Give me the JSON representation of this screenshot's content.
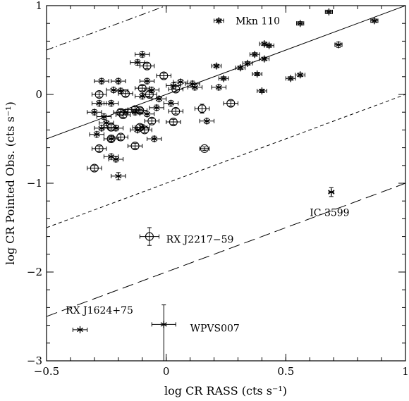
{
  "chart_data": {
    "type": "scatter",
    "title": "",
    "xlabel": "log CR RASS (cts s⁻¹)",
    "ylabel": "log CR Pointed Obs. (cts s⁻¹)",
    "xlim": [
      -0.5,
      1.0
    ],
    "ylim": [
      -3.0,
      1.0
    ],
    "x_ticks": [
      -0.5,
      0,
      0.5,
      1
    ],
    "x_tick_labels": [
      "−0.5",
      "0",
      "0.5",
      "1"
    ],
    "y_ticks": [
      -3,
      -2,
      -1,
      0,
      1
    ],
    "y_tick_labels": [
      "−3",
      "−2",
      "−1",
      "0",
      "1"
    ],
    "grid": false,
    "reference_lines": [
      {
        "style": "solid",
        "slope": 1,
        "intercept": 0.0
      },
      {
        "style": "dash-dot",
        "slope": 1,
        "intercept": 1.0
      },
      {
        "style": "short-dash",
        "slope": 1,
        "intercept": -1.0
      },
      {
        "style": "long-dash",
        "slope": 1,
        "intercept": -2.0
      }
    ],
    "series": [
      {
        "marker": "star",
        "points": [
          {
            "x": 0.22,
            "y": 0.83,
            "xerr": 0.02,
            "yerr": 0.02
          },
          {
            "x": 0.56,
            "y": 0.8,
            "xerr": 0.015,
            "yerr": 0.02
          },
          {
            "x": 0.68,
            "y": 0.93,
            "xerr": 0.015,
            "yerr": 0.02
          },
          {
            "x": 0.87,
            "y": 0.83,
            "xerr": 0.015,
            "yerr": 0.02
          },
          {
            "x": 0.72,
            "y": 0.56,
            "xerr": 0.015,
            "yerr": 0.03
          },
          {
            "x": 0.41,
            "y": 0.57,
            "xerr": 0.02,
            "yerr": 0.02
          },
          {
            "x": 0.43,
            "y": 0.55,
            "xerr": 0.02,
            "yerr": 0.02
          },
          {
            "x": 0.37,
            "y": 0.45,
            "xerr": 0.02,
            "yerr": 0.02
          },
          {
            "x": 0.41,
            "y": 0.4,
            "xerr": 0.02,
            "yerr": 0.02
          },
          {
            "x": 0.34,
            "y": 0.35,
            "xerr": 0.02,
            "yerr": 0.02
          },
          {
            "x": 0.31,
            "y": 0.3,
            "xerr": 0.02,
            "yerr": 0.02
          },
          {
            "x": 0.21,
            "y": 0.32,
            "xerr": 0.02,
            "yerr": 0.02
          },
          {
            "x": 0.38,
            "y": 0.23,
            "xerr": 0.02,
            "yerr": 0.02
          },
          {
            "x": 0.56,
            "y": 0.22,
            "xerr": 0.02,
            "yerr": 0.02
          },
          {
            "x": 0.52,
            "y": 0.18,
            "xerr": 0.02,
            "yerr": 0.02
          },
          {
            "x": 0.24,
            "y": 0.18,
            "xerr": 0.02,
            "yerr": 0.02
          },
          {
            "x": 0.11,
            "y": 0.12,
            "xerr": 0.03,
            "yerr": 0.03
          },
          {
            "x": 0.06,
            "y": 0.14,
            "xerr": 0.03,
            "yerr": 0.03
          },
          {
            "x": 0.22,
            "y": 0.08,
            "xerr": 0.03,
            "yerr": 0.03
          },
          {
            "x": 0.4,
            "y": 0.04,
            "xerr": 0.02,
            "yerr": 0.02
          },
          {
            "x": 0.12,
            "y": 0.08,
            "xerr": 0.03,
            "yerr": 0.03
          },
          {
            "x": -0.1,
            "y": 0.45,
            "xerr": 0.03,
            "yerr": 0.03
          },
          {
            "x": -0.12,
            "y": 0.36,
            "xerr": 0.03,
            "yerr": 0.03
          },
          {
            "x": -0.2,
            "y": 0.15,
            "xerr": 0.03,
            "yerr": 0.03
          },
          {
            "x": -0.27,
            "y": 0.15,
            "xerr": 0.03,
            "yerr": 0.03
          },
          {
            "x": -0.08,
            "y": 0.15,
            "xerr": 0.03,
            "yerr": 0.03
          },
          {
            "x": -0.22,
            "y": 0.05,
            "xerr": 0.03,
            "yerr": 0.03
          },
          {
            "x": -0.19,
            "y": 0.04,
            "xerr": 0.03,
            "yerr": 0.03
          },
          {
            "x": -0.06,
            "y": 0.05,
            "xerr": 0.03,
            "yerr": 0.03
          },
          {
            "x": 0.03,
            "y": 0.1,
            "xerr": 0.03,
            "yerr": 0.03
          },
          {
            "x": -0.1,
            "y": -0.02,
            "xerr": 0.03,
            "yerr": 0.03
          },
          {
            "x": -0.03,
            "y": -0.05,
            "xerr": 0.03,
            "yerr": 0.03
          },
          {
            "x": -0.28,
            "y": -0.1,
            "xerr": 0.03,
            "yerr": 0.03
          },
          {
            "x": -0.23,
            "y": -0.1,
            "xerr": 0.03,
            "yerr": 0.03
          },
          {
            "x": -0.3,
            "y": -0.2,
            "xerr": 0.03,
            "yerr": 0.03
          },
          {
            "x": -0.26,
            "y": -0.25,
            "xerr": 0.03,
            "yerr": 0.03
          },
          {
            "x": -0.17,
            "y": -0.2,
            "xerr": 0.03,
            "yerr": 0.03
          },
          {
            "x": -0.13,
            "y": -0.2,
            "xerr": 0.03,
            "yerr": 0.03
          },
          {
            "x": -0.08,
            "y": -0.22,
            "xerr": 0.03,
            "yerr": 0.03
          },
          {
            "x": -0.04,
            "y": -0.15,
            "xerr": 0.03,
            "yerr": 0.03
          },
          {
            "x": 0.02,
            "y": -0.1,
            "xerr": 0.03,
            "yerr": 0.03
          },
          {
            "x": -0.25,
            "y": -0.32,
            "xerr": 0.03,
            "yerr": 0.03
          },
          {
            "x": -0.21,
            "y": -0.38,
            "xerr": 0.03,
            "yerr": 0.03
          },
          {
            "x": -0.27,
            "y": -0.38,
            "xerr": 0.03,
            "yerr": 0.03
          },
          {
            "x": -0.29,
            "y": -0.45,
            "xerr": 0.03,
            "yerr": 0.03
          },
          {
            "x": -0.23,
            "y": -0.5,
            "xerr": 0.03,
            "yerr": 0.03
          },
          {
            "x": -0.12,
            "y": -0.4,
            "xerr": 0.03,
            "yerr": 0.03
          },
          {
            "x": -0.1,
            "y": -0.37,
            "xerr": 0.03,
            "yerr": 0.03
          },
          {
            "x": -0.05,
            "y": -0.5,
            "xerr": 0.03,
            "yerr": 0.03
          },
          {
            "x": -0.23,
            "y": -0.7,
            "xerr": 0.03,
            "yerr": 0.03
          },
          {
            "x": -0.21,
            "y": -0.73,
            "xerr": 0.03,
            "yerr": 0.03
          },
          {
            "x": 0.17,
            "y": -0.3,
            "xerr": 0.03,
            "yerr": 0.03
          },
          {
            "x": -0.2,
            "y": -0.92,
            "xerr": 0.03,
            "yerr": 0.04
          },
          {
            "x": 0.69,
            "y": -1.1,
            "xerr": 0.01,
            "yerr": 0.05
          },
          {
            "x": -0.36,
            "y": -2.65,
            "xerr": 0.03,
            "yerr": 0.0
          },
          {
            "x": -0.01,
            "y": -2.59,
            "xerr": 0.05,
            "yerr": 0.22,
            "yerr_low": 0.6
          }
        ]
      },
      {
        "marker": "circle",
        "points": [
          {
            "x": -0.08,
            "y": 0.32,
            "xerr": 0.03,
            "yerr": 0.03
          },
          {
            "x": -0.01,
            "y": 0.21,
            "xerr": 0.03,
            "yerr": 0.03
          },
          {
            "x": -0.1,
            "y": 0.07,
            "xerr": 0.03,
            "yerr": 0.03
          },
          {
            "x": 0.04,
            "y": 0.06,
            "xerr": 0.03,
            "yerr": 0.03
          },
          {
            "x": -0.28,
            "y": 0.0,
            "xerr": 0.03,
            "yerr": 0.03
          },
          {
            "x": -0.17,
            "y": 0.01,
            "xerr": 0.03,
            "yerr": 0.03
          },
          {
            "x": -0.07,
            "y": 0.0,
            "xerr": 0.03,
            "yerr": 0.03
          },
          {
            "x": -0.13,
            "y": -0.17,
            "xerr": 0.03,
            "yerr": 0.03
          },
          {
            "x": -0.11,
            "y": -0.18,
            "xerr": 0.03,
            "yerr": 0.03
          },
          {
            "x": -0.19,
            "y": -0.2,
            "xerr": 0.03,
            "yerr": 0.03
          },
          {
            "x": -0.18,
            "y": -0.23,
            "xerr": 0.03,
            "yerr": 0.03
          },
          {
            "x": 0.04,
            "y": -0.19,
            "xerr": 0.03,
            "yerr": 0.03
          },
          {
            "x": 0.15,
            "y": -0.16,
            "xerr": 0.03,
            "yerr": 0.05
          },
          {
            "x": 0.27,
            "y": -0.1,
            "xerr": 0.03,
            "yerr": 0.03
          },
          {
            "x": -0.06,
            "y": -0.3,
            "xerr": 0.03,
            "yerr": 0.03
          },
          {
            "x": 0.03,
            "y": -0.31,
            "xerr": 0.03,
            "yerr": 0.03
          },
          {
            "x": -0.23,
            "y": -0.37,
            "xerr": 0.03,
            "yerr": 0.03
          },
          {
            "x": -0.11,
            "y": -0.37,
            "xerr": 0.03,
            "yerr": 0.03
          },
          {
            "x": -0.09,
            "y": -0.4,
            "xerr": 0.03,
            "yerr": 0.03
          },
          {
            "x": -0.19,
            "y": -0.48,
            "xerr": 0.03,
            "yerr": 0.03
          },
          {
            "x": -0.23,
            "y": -0.5,
            "xerr": 0.03,
            "yerr": 0.03
          },
          {
            "x": -0.28,
            "y": -0.61,
            "xerr": 0.03,
            "yerr": 0.03
          },
          {
            "x": -0.13,
            "y": -0.58,
            "xerr": 0.03,
            "yerr": 0.03
          },
          {
            "x": 0.16,
            "y": -0.61,
            "xerr": 0.02,
            "yerr": 0.02
          },
          {
            "x": -0.3,
            "y": -0.83,
            "xerr": 0.03,
            "yerr": 0.03
          },
          {
            "x": -0.07,
            "y": -1.6,
            "xerr": 0.04,
            "yerr": 0.1
          }
        ]
      }
    ],
    "annotations": [
      {
        "text": "Mkn 110",
        "x": 0.29,
        "y": 0.83
      },
      {
        "text": "IC 3599",
        "x": 0.6,
        "y": -1.33
      },
      {
        "text": "RX J2217−59",
        "x": 0.0,
        "y": -1.63
      },
      {
        "text": "RX J1624+75",
        "x": -0.42,
        "y": -2.43
      },
      {
        "text": "WPVS007",
        "x": 0.1,
        "y": -2.63
      }
    ]
  }
}
